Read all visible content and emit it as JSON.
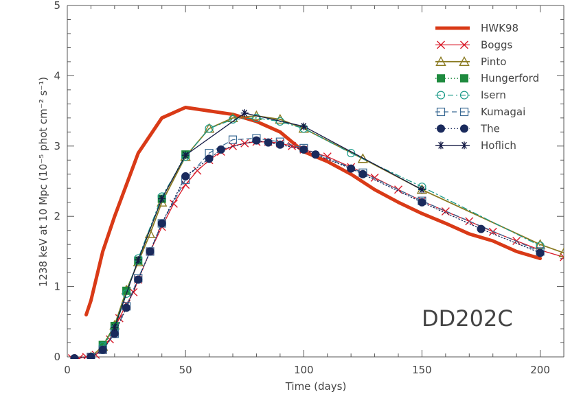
{
  "chart_data": {
    "type": "line",
    "title": "",
    "xlabel": "Time (days)",
    "ylabel": "1238 keV at 10 Mpc (10⁻⁵ phot cm⁻² s⁻¹)",
    "xlim": [
      0,
      210
    ],
    "ylim": [
      0,
      5
    ],
    "xticks": [
      0,
      50,
      100,
      150,
      200
    ],
    "yticks": [
      0,
      1,
      2,
      3,
      4,
      5
    ],
    "xtick_labels": [
      "0",
      "50",
      "100",
      "150",
      "200"
    ],
    "ytick_labels": [
      "0",
      "1",
      "2",
      "3",
      "4",
      "5"
    ],
    "legend_position": "top-right",
    "annotation": "DD202C",
    "series": [
      {
        "name": "HWK98",
        "color": "#d93a17",
        "marker": "none",
        "dash": "solid",
        "width": 5,
        "x": [
          8,
          10,
          15,
          20,
          25,
          30,
          40,
          50,
          60,
          70,
          80,
          90,
          100,
          110,
          120,
          130,
          140,
          150,
          160,
          170,
          180,
          190,
          200
        ],
        "y": [
          0.6,
          0.8,
          1.5,
          2.0,
          2.45,
          2.9,
          3.4,
          3.55,
          3.5,
          3.45,
          3.35,
          3.2,
          2.92,
          2.78,
          2.6,
          2.38,
          2.2,
          2.04,
          1.9,
          1.75,
          1.65,
          1.5,
          1.4
        ]
      },
      {
        "name": "Boggs",
        "color": "#d91c2a",
        "marker": "x",
        "dash": "solid",
        "width": 1.3,
        "x": [
          2,
          5,
          8,
          10,
          12,
          15,
          18,
          20,
          22,
          25,
          28,
          30,
          35,
          40,
          45,
          50,
          55,
          60,
          65,
          70,
          75,
          80,
          85,
          90,
          95,
          100,
          110,
          120,
          130,
          140,
          150,
          160,
          170,
          180,
          190,
          200,
          210
        ],
        "y": [
          -0.02,
          -0.02,
          0.0,
          0.0,
          0.03,
          0.1,
          0.25,
          0.4,
          0.55,
          0.75,
          0.92,
          1.1,
          1.5,
          1.85,
          2.18,
          2.45,
          2.65,
          2.8,
          2.92,
          3.0,
          3.04,
          3.06,
          3.06,
          3.04,
          3.0,
          2.95,
          2.85,
          2.7,
          2.55,
          2.38,
          2.22,
          2.07,
          1.93,
          1.78,
          1.65,
          1.52,
          1.42
        ]
      },
      {
        "name": "Pinto",
        "color": "#8a7a22",
        "marker": "triangle",
        "dash": "solid",
        "width": 1.8,
        "x": [
          10,
          15,
          20,
          25,
          30,
          35,
          40,
          50,
          60,
          70,
          80,
          90,
          100,
          125,
          150,
          200,
          210
        ],
        "y": [
          0.0,
          0.15,
          0.45,
          0.95,
          1.35,
          1.75,
          2.2,
          2.85,
          3.25,
          3.4,
          3.43,
          3.38,
          3.25,
          2.82,
          2.38,
          1.6,
          1.48
        ]
      },
      {
        "name": "Hungerford",
        "color": "#1e8a3e",
        "marker": "square-filled",
        "dash": "dot",
        "width": 1.3,
        "x": [
          15,
          20,
          25,
          30,
          40,
          50
        ],
        "y": [
          0.17,
          0.44,
          0.94,
          1.37,
          2.25,
          2.88
        ]
      },
      {
        "name": "Isern",
        "color": "#1a9a88",
        "marker": "circle-open",
        "dash": "dashdot",
        "width": 1.3,
        "x": [
          15,
          20,
          25,
          30,
          40,
          50,
          60,
          70,
          80,
          90,
          100,
          120,
          150,
          200
        ],
        "y": [
          0.15,
          0.4,
          0.9,
          1.4,
          2.28,
          2.85,
          3.25,
          3.38,
          3.4,
          3.35,
          3.25,
          2.9,
          2.42,
          1.58
        ]
      },
      {
        "name": "Kumagai",
        "color": "#3a6a94",
        "marker": "square-open",
        "dash": "dash",
        "width": 1.3,
        "x": [
          10,
          15,
          20,
          25,
          30,
          35,
          40,
          50,
          60,
          70,
          80,
          90,
          100,
          125,
          150,
          200
        ],
        "y": [
          0.0,
          0.1,
          0.33,
          0.72,
          1.12,
          1.5,
          1.9,
          2.52,
          2.9,
          3.09,
          3.11,
          3.06,
          2.97,
          2.62,
          2.22,
          1.5
        ]
      },
      {
        "name": "The",
        "color": "#1a2a5c",
        "marker": "circle-filled",
        "dash": "dot",
        "width": 1.3,
        "x": [
          3,
          10,
          15,
          20,
          25,
          30,
          35,
          40,
          50,
          60,
          65,
          80,
          85,
          90,
          100,
          105,
          120,
          125,
          150,
          175,
          200
        ],
        "y": [
          -0.02,
          0.0,
          0.1,
          0.33,
          0.7,
          1.1,
          1.5,
          1.9,
          2.57,
          2.82,
          2.95,
          3.08,
          3.05,
          3.02,
          2.95,
          2.88,
          2.68,
          2.6,
          2.2,
          1.82,
          1.48
        ]
      },
      {
        "name": "Hoflich",
        "color": "#141a45",
        "marker": "asterisk",
        "dash": "solid",
        "width": 1.3,
        "x": [
          20,
          30,
          40,
          50,
          75,
          100,
          150
        ],
        "y": [
          0.42,
          1.38,
          2.25,
          2.87,
          3.47,
          3.28,
          2.38
        ]
      }
    ]
  }
}
